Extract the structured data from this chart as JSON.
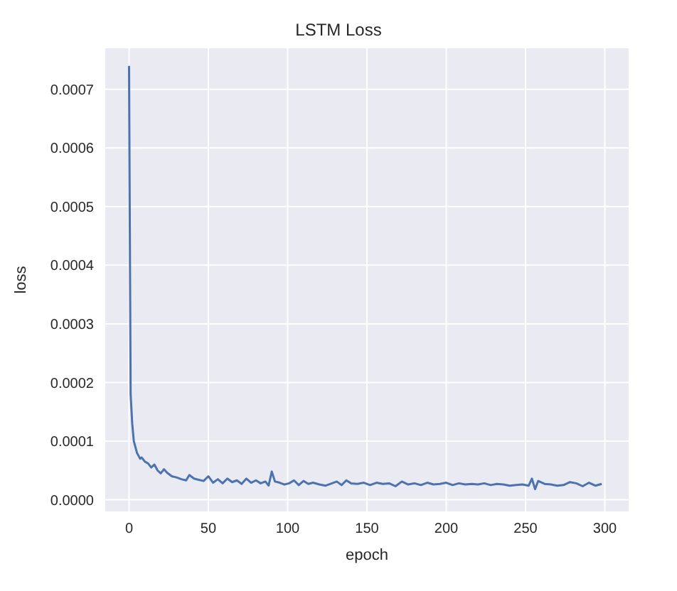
{
  "chart_data": {
    "type": "line",
    "title": "LSTM Loss",
    "xlabel": "epoch",
    "ylabel": "loss",
    "xlim": [
      -15,
      315
    ],
    "xticks": [
      0,
      50,
      100,
      150,
      200,
      250,
      300
    ],
    "ylim": [
      -2e-05,
      0.00077
    ],
    "yticks": [
      {
        "value": 0,
        "label": "0.0000"
      },
      {
        "value": 0.0001,
        "label": "0.0001"
      },
      {
        "value": 0.0002,
        "label": "0.0002"
      },
      {
        "value": 0.0003,
        "label": "0.0003"
      },
      {
        "value": 0.0004,
        "label": "0.0004"
      },
      {
        "value": 0.0005,
        "label": "0.0005"
      },
      {
        "value": 0.0006,
        "label": "0.0006"
      },
      {
        "value": 0.0007,
        "label": "0.0007"
      }
    ],
    "grid": true,
    "marker": "none",
    "line_style": "solid",
    "series": [
      {
        "color": "#4c72b0",
        "x": [
          0,
          1,
          2,
          3,
          4,
          5,
          6,
          7,
          8,
          10,
          12,
          14,
          16,
          18,
          20,
          22,
          24,
          27,
          30,
          33,
          36,
          38,
          41,
          44,
          47,
          50,
          53,
          56,
          59,
          62,
          65,
          68,
          71,
          74,
          77,
          80,
          83,
          86,
          88,
          90,
          92,
          95,
          98,
          101,
          104,
          107,
          110,
          113,
          116,
          120,
          124,
          128,
          131,
          134,
          137,
          140,
          144,
          148,
          152,
          156,
          160,
          164,
          168,
          172,
          176,
          180,
          184,
          188,
          192,
          196,
          200,
          204,
          208,
          212,
          216,
          220,
          224,
          228,
          232,
          236,
          240,
          244,
          248,
          252,
          254,
          256,
          258,
          262,
          266,
          270,
          274,
          278,
          282,
          286,
          290,
          294,
          298
        ],
        "values": [
          0.00074,
          0.00018,
          0.00013,
          0.0001,
          9e-05,
          8e-05,
          7.5e-05,
          7e-05,
          7.2e-05,
          6.5e-05,
          6.2e-05,
          5.5e-05,
          6e-05,
          5e-05,
          4.5e-05,
          5.2e-05,
          4.6e-05,
          4e-05,
          3.8e-05,
          3.5e-05,
          3.3e-05,
          4.2e-05,
          3.6e-05,
          3.4e-05,
          3.2e-05,
          4e-05,
          2.9e-05,
          3.5e-05,
          2.8e-05,
          3.6e-05,
          3e-05,
          3.3e-05,
          2.7e-05,
          3.6e-05,
          2.9e-05,
          3.3e-05,
          2.8e-05,
          3.1e-05,
          2.4e-05,
          4.8e-05,
          3.1e-05,
          2.9e-05,
          2.6e-05,
          2.8e-05,
          3.3e-05,
          2.5e-05,
          3.2e-05,
          2.7e-05,
          2.9e-05,
          2.6e-05,
          2.4e-05,
          2.8e-05,
          3.1e-05,
          2.5e-05,
          3.3e-05,
          2.8e-05,
          2.7e-05,
          2.9e-05,
          2.5e-05,
          2.9e-05,
          2.7e-05,
          2.8e-05,
          2.3e-05,
          3.1e-05,
          2.6e-05,
          2.8e-05,
          2.5e-05,
          2.9e-05,
          2.6e-05,
          2.7e-05,
          2.9e-05,
          2.5e-05,
          2.8e-05,
          2.6e-05,
          2.7e-05,
          2.6e-05,
          2.8e-05,
          2.5e-05,
          2.7e-05,
          2.6e-05,
          2.4e-05,
          2.5e-05,
          2.6e-05,
          2.4e-05,
          3.6e-05,
          1.8e-05,
          3.2e-05,
          2.7e-05,
          2.6e-05,
          2.4e-05,
          2.5e-05,
          3e-05,
          2.8e-05,
          2.3e-05,
          2.9e-05,
          2.4e-05,
          2.7e-05
        ]
      }
    ]
  }
}
